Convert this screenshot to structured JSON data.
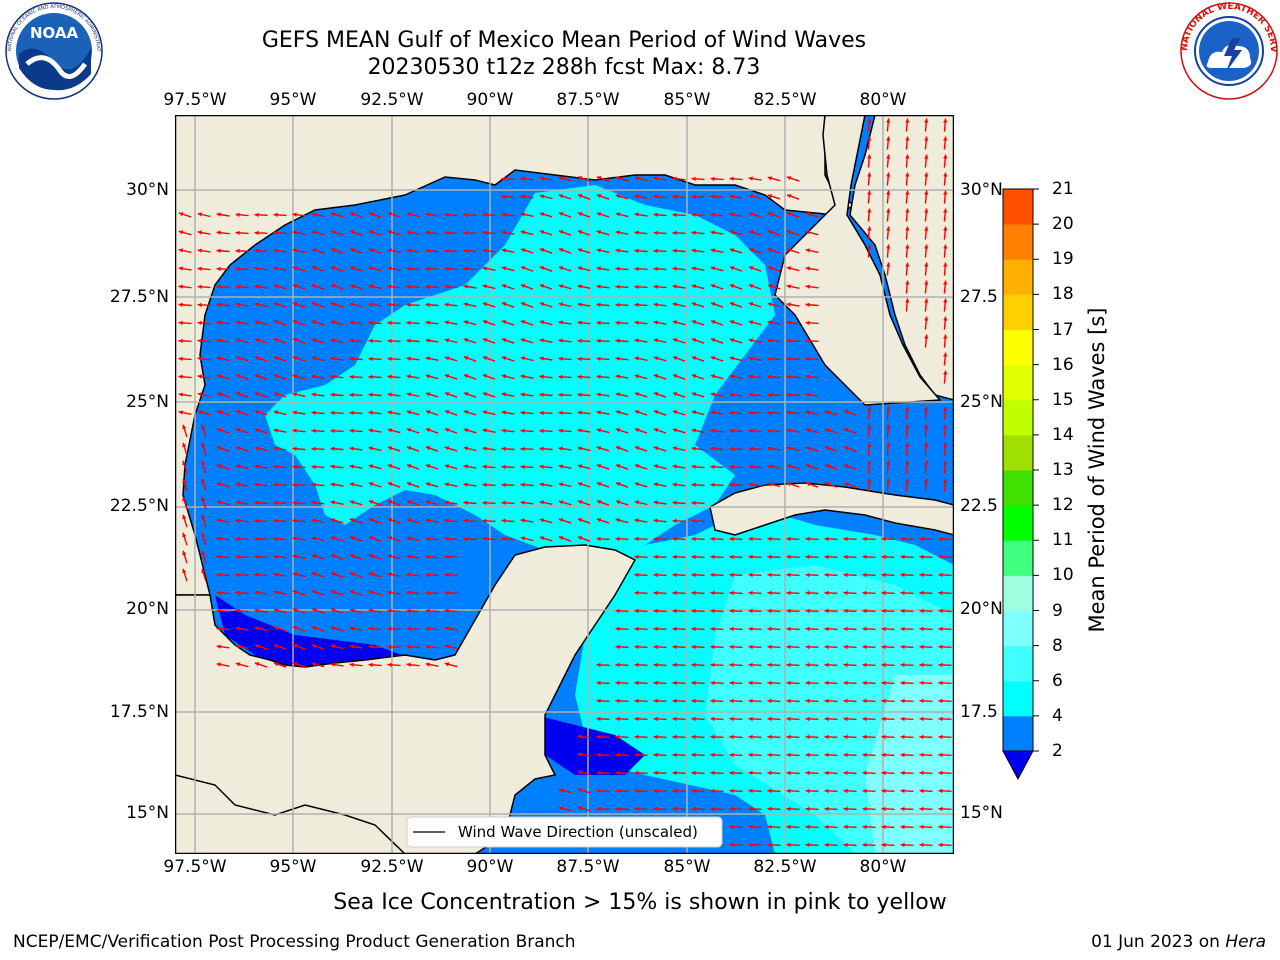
{
  "header": {
    "title_line1": "GEFS MEAN Gulf of Mexico Mean Period of Wind Waves",
    "title_line2": "20230530 t12z 288h fcst   Max: 8.73"
  },
  "logos": {
    "left_text": "NOAA",
    "left_ring_text": "NATIONAL OCEANIC AND ATMOSPHERIC ADMINISTRATION · U.S. DEPARTMENT OF COMMERCE",
    "right_ring_text": "NATIONAL WEATHER SERVICE"
  },
  "map": {
    "lon_labels": [
      "97.5°W",
      "95°W",
      "92.5°W",
      "90°W",
      "87.5°W",
      "85°W",
      "82.5°W",
      "80°W"
    ],
    "lat_labels_left": [
      "30°N",
      "27.5°N",
      "25°N",
      "22.5°N",
      "20°N",
      "17.5°N",
      "15°N"
    ],
    "lat_labels_right": [
      "30°N",
      "27.5",
      "25°N",
      "22.5",
      "20°N",
      "17.5",
      "15°N"
    ],
    "legend_label": "Wind Wave Direction (unscaled)",
    "colors": {
      "land": "#efecdc",
      "water_low": "#0000f0",
      "water_2_4": "#0080ff",
      "water_4_6": "#00ffff",
      "water_6_8": "#40ffff",
      "arrow": "#ff0000"
    }
  },
  "colorbar": {
    "label": "Mean Period of Wind Waves [s]",
    "ticks": [
      "2",
      "4",
      "6",
      "8",
      "9",
      "10",
      "11",
      "12",
      "13",
      "14",
      "15",
      "16",
      "17",
      "18",
      "19",
      "20",
      "21"
    ],
    "colors": [
      "#0080ff",
      "#00ffff",
      "#40ffff",
      "#80ffff",
      "#a0ffe0",
      "#40ff80",
      "#00ff00",
      "#40e000",
      "#a0e000",
      "#c0ff00",
      "#e0ff00",
      "#ffff00",
      "#ffd000",
      "#ffb000",
      "#ff8000",
      "#ff5000",
      "#ff2000",
      "#ff0000"
    ],
    "under_color": "#0000f0"
  },
  "subtitle": "Sea Ice Concentration > 15% is shown in pink to yellow",
  "footer": {
    "left": "NCEP/EMC/Verification Post Processing Product Generation Branch",
    "right_date": "01 Jun 2023 on ",
    "right_host": "Hera"
  }
}
